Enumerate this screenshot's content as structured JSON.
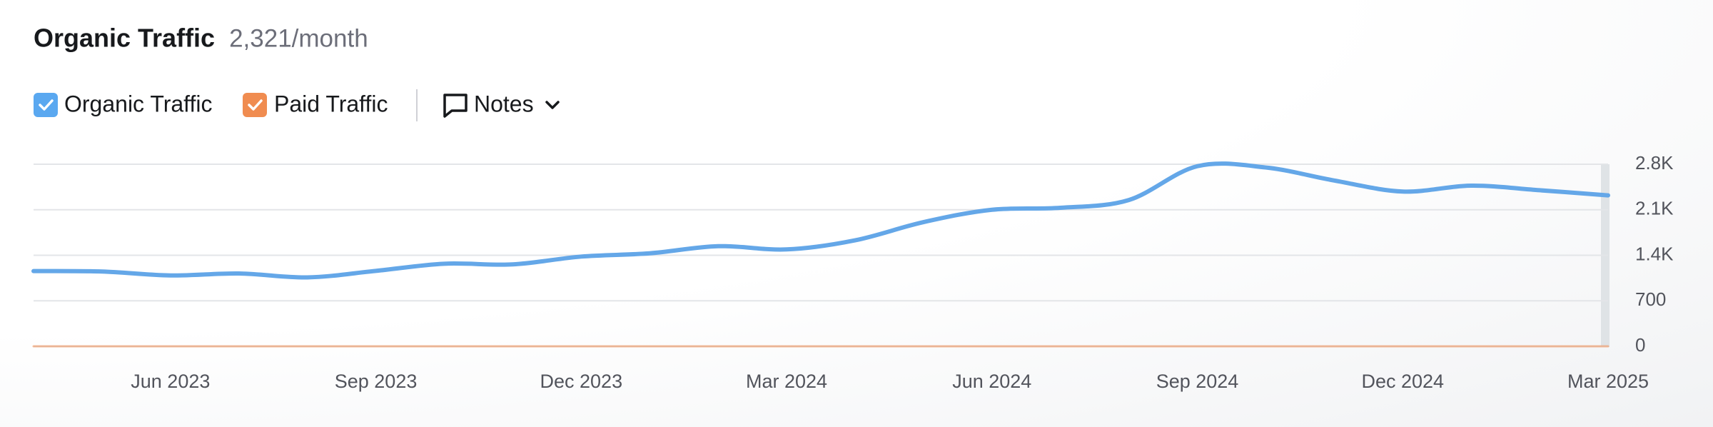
{
  "chart_data": {
    "type": "line",
    "title": "Organic Traffic",
    "subtitle": "2,321/month",
    "categories": [
      null,
      null,
      "Jun 2023",
      null,
      null,
      "Sep 2023",
      null,
      null,
      "Dec 2023",
      null,
      null,
      "Mar 2024",
      null,
      null,
      "Jun 2024",
      null,
      null,
      "Sep 2024",
      null,
      null,
      "Dec 2024",
      null,
      null,
      "Mar 2025"
    ],
    "series": [
      {
        "name": "Organic Traffic",
        "color": "#64a7e8",
        "values": [
          1157,
          1150,
          1090,
          1120,
          1060,
          1160,
          1270,
          1260,
          1380,
          1430,
          1540,
          1490,
          1630,
          1910,
          2100,
          2130,
          2250,
          2770,
          2750,
          2550,
          2380,
          2470,
          2400,
          2321
        ]
      },
      {
        "name": "Paid Traffic",
        "color": "#f08c50",
        "values": [
          0,
          0,
          0,
          0,
          0,
          0,
          0,
          0,
          0,
          0,
          0,
          0,
          0,
          0,
          0,
          0,
          0,
          0,
          0,
          0,
          0,
          0,
          0,
          0
        ]
      }
    ],
    "ylim": [
      0,
      2800
    ],
    "yticks": [
      0,
      700,
      {
        "value": 1400,
        "label": "1.4K"
      },
      {
        "value": 2100,
        "label": "2.1K"
      },
      {
        "value": 2800,
        "label": "2.8K"
      }
    ],
    "grid": true
  },
  "controls": {
    "notes": "Notes"
  }
}
